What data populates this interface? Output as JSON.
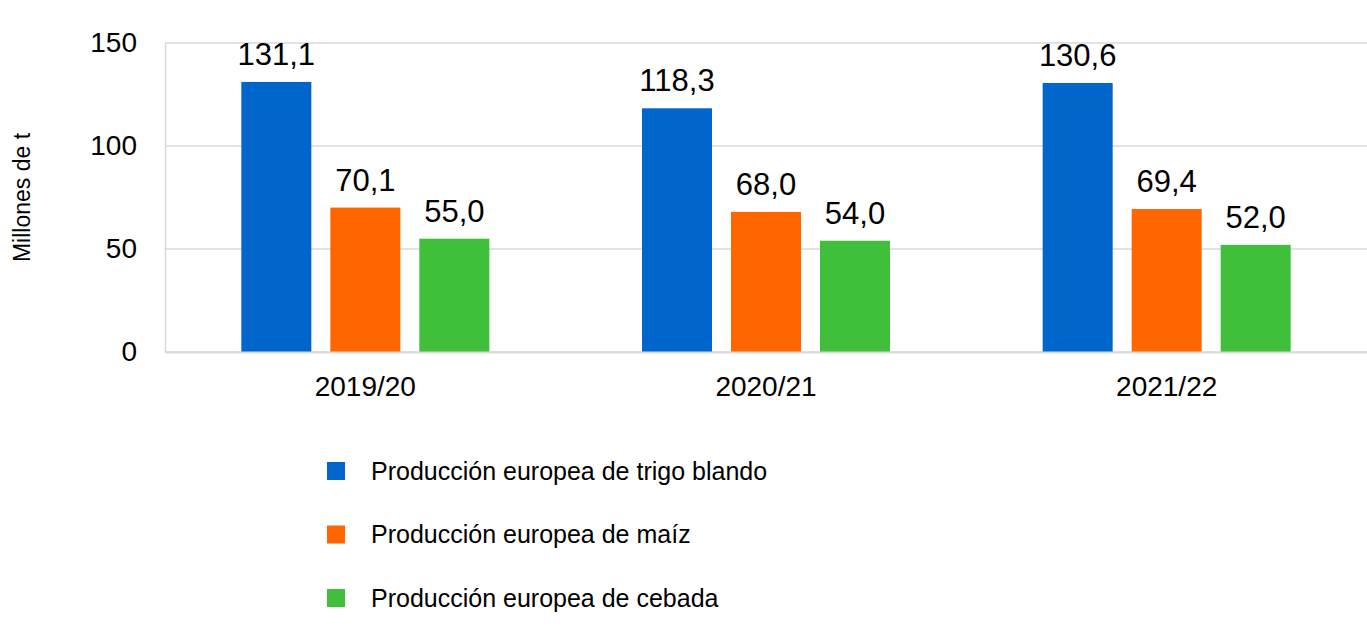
{
  "chart_data": {
    "type": "bar",
    "ylabel": "Millones de t",
    "categories": [
      "2019/20",
      "2020/21",
      "2021/22"
    ],
    "series": [
      {
        "name": "Producción europea de trigo blando",
        "color": "#0066cc",
        "values": [
          131.1,
          118.3,
          130.6
        ],
        "value_labels": [
          "131,1",
          "118,3",
          "130,6"
        ]
      },
      {
        "name": "Producción europea de maíz",
        "color": "#ff6600",
        "values": [
          70.1,
          68.0,
          69.4
        ],
        "value_labels": [
          "70,1",
          "68,0",
          "69,4"
        ]
      },
      {
        "name": "Producción europea de cebada",
        "color": "#40bf3a",
        "values": [
          55.0,
          54.0,
          52.0
        ],
        "value_labels": [
          "55,0",
          "54,0",
          "52,0"
        ]
      }
    ],
    "ylim": [
      0,
      150
    ],
    "yticks": [
      0,
      50,
      100,
      150
    ],
    "grid": true,
    "data_labels": true,
    "legend": "bottom"
  }
}
